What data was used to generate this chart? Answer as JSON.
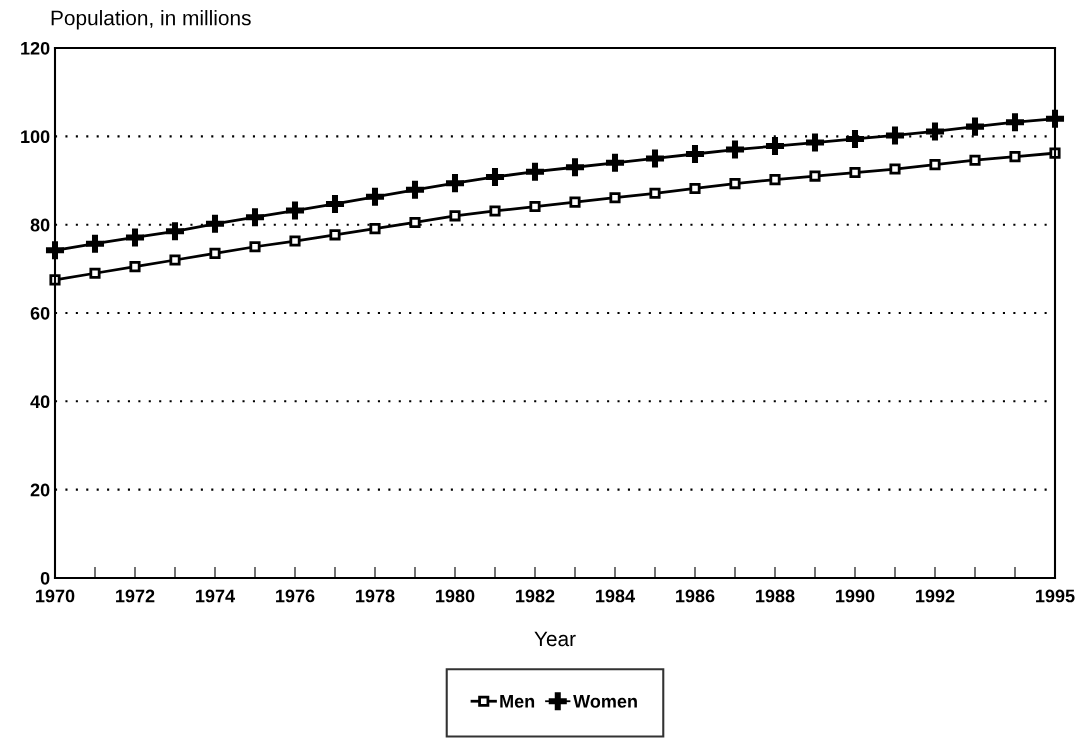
{
  "chart_data": {
    "type": "line",
    "ylabel": "Population, in millions",
    "xlabel": "Year",
    "x": [
      1970,
      1971,
      1972,
      1973,
      1974,
      1975,
      1976,
      1977,
      1978,
      1979,
      1980,
      1981,
      1982,
      1983,
      1984,
      1985,
      1986,
      1987,
      1988,
      1989,
      1990,
      1991,
      1992,
      1993,
      1994,
      1995
    ],
    "series": [
      {
        "name": "Men",
        "color": "#000000",
        "marker": "square",
        "values": [
          67.5,
          69,
          70.5,
          72,
          73.5,
          75,
          76.3,
          77.7,
          79.1,
          80.5,
          82,
          83.1,
          84.1,
          85.1,
          86.1,
          87.1,
          88.2,
          89.3,
          90.2,
          91,
          91.8,
          92.6,
          93.6,
          94.6,
          95.4,
          96.2
        ]
      },
      {
        "name": "Women",
        "color": "#000000",
        "marker": "cross",
        "values": [
          74.2,
          75.7,
          77.1,
          78.5,
          80.2,
          81.7,
          83.2,
          84.7,
          86.3,
          87.9,
          89.4,
          90.8,
          92,
          93,
          94,
          95,
          96,
          97,
          97.8,
          98.6,
          99.4,
          100.2,
          101.1,
          102.2,
          103.2,
          104
        ]
      }
    ],
    "xlim": [
      1970,
      1995
    ],
    "xticks": [
      1970,
      {
        "value": 1971,
        "label": null
      },
      1972,
      {
        "value": 1973,
        "label": null
      },
      1974,
      {
        "value": 1975,
        "label": null
      },
      1976,
      {
        "value": 1977,
        "label": null
      },
      1978,
      {
        "value": 1979,
        "label": null
      },
      1980,
      {
        "value": 1981,
        "label": null
      },
      1982,
      {
        "value": 1983,
        "label": null
      },
      1984,
      {
        "value": 1985,
        "label": null
      },
      1986,
      {
        "value": 1987,
        "label": null
      },
      1988,
      {
        "value": 1989,
        "label": null
      },
      1990,
      {
        "value": 1991,
        "label": null
      },
      1992,
      {
        "value": 1993,
        "label": null
      },
      {
        "value": 1994,
        "label": null
      },
      1995
    ],
    "ylim": [
      0,
      120
    ],
    "yticks": [
      0,
      20,
      40,
      60,
      80,
      100,
      120
    ],
    "grid": "y",
    "legend": "bottom",
    "line_style": "solid"
  }
}
